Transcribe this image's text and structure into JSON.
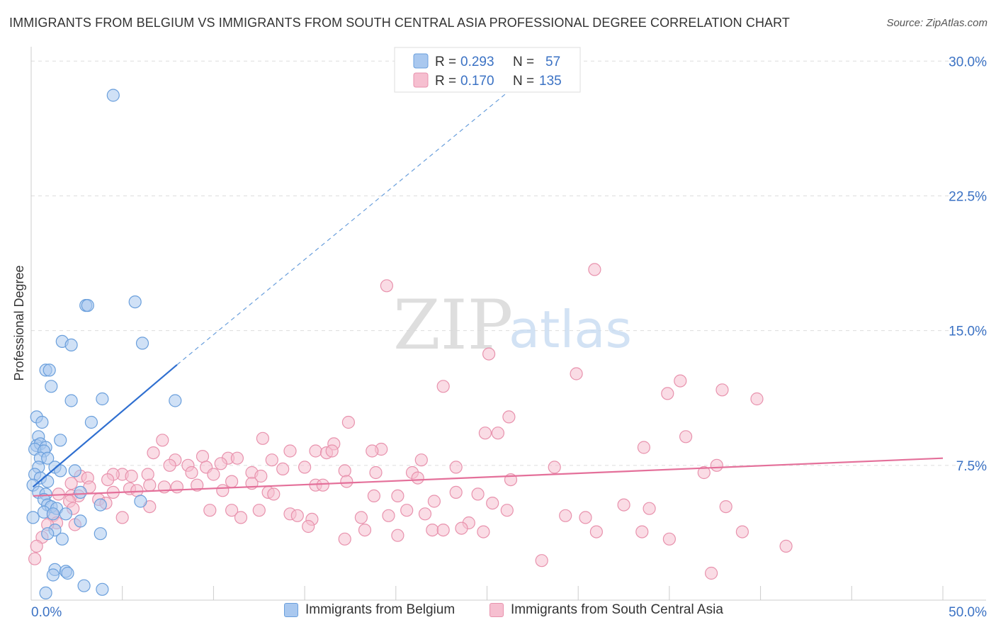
{
  "header": {
    "title": "IMMIGRANTS FROM BELGIUM VS IMMIGRANTS FROM SOUTH CENTRAL ASIA PROFESSIONAL DEGREE CORRELATION CHART",
    "source": "Source: ZipAtlas.com"
  },
  "watermark": {
    "zip": "ZIP",
    "atlas": "atlas"
  },
  "colors": {
    "blue_fill": "#a9c8ef",
    "blue_stroke": "#6a9fdc",
    "blue_line": "#2f6fd0",
    "pink_fill": "#f6bfd0",
    "pink_stroke": "#e892ad",
    "pink_line": "#e4709a",
    "tick_label": "#3b72c4",
    "grid": "#dddddd"
  },
  "legend_top": {
    "rows": [
      {
        "r_label": "R =",
        "r_value": "0.293",
        "n_label": "N =",
        "n_value": "57"
      },
      {
        "r_label": "R =",
        "r_value": "0.170",
        "n_label": "N =",
        "n_value": "135"
      }
    ]
  },
  "legend_bottom": {
    "items": [
      {
        "label": "Immigrants from Belgium"
      },
      {
        "label": "Immigrants from South Central Asia"
      }
    ]
  },
  "chart_data": {
    "type": "scatter",
    "title": "IMMIGRANTS FROM BELGIUM VS IMMIGRANTS FROM SOUTH CENTRAL ASIA PROFESSIONAL DEGREE CORRELATION CHART",
    "ylabel": "Professional Degree",
    "xlabel": "",
    "xlim": [
      0,
      50
    ],
    "ylim": [
      0,
      30.8
    ],
    "x_tick_labels": [
      {
        "value": 0,
        "label": "0.0%"
      },
      {
        "value": 50,
        "label": "50.0%"
      }
    ],
    "y_tick_labels": [
      {
        "value": 7.5,
        "label": "7.5%"
      },
      {
        "value": 15,
        "label": "15.0%"
      },
      {
        "value": 22.5,
        "label": "22.5%"
      },
      {
        "value": 30,
        "label": "30.0%"
      }
    ],
    "grid": true,
    "legend_position": "top-center",
    "series": [
      {
        "name": "Immigrants from Belgium",
        "color": "#6a9fdc",
        "r": 0.293,
        "n": 57,
        "trend": {
          "x": [
            0.1,
            8.0
          ],
          "y": [
            6.3,
            13.1
          ],
          "dashed_extension": {
            "x": [
              8.0,
              27.0
            ],
            "y": [
              13.1,
              29.0
            ]
          }
        },
        "points": [
          [
            4.5,
            28.1
          ],
          [
            5.7,
            16.6
          ],
          [
            3.0,
            16.4
          ],
          [
            3.1,
            16.4
          ],
          [
            6.1,
            14.3
          ],
          [
            1.7,
            14.4
          ],
          [
            2.2,
            14.2
          ],
          [
            0.8,
            12.8
          ],
          [
            1.0,
            12.8
          ],
          [
            1.1,
            11.9
          ],
          [
            2.2,
            11.1
          ],
          [
            3.9,
            11.2
          ],
          [
            7.9,
            11.1
          ],
          [
            0.3,
            10.2
          ],
          [
            0.6,
            9.9
          ],
          [
            3.3,
            9.9
          ],
          [
            0.4,
            9.1
          ],
          [
            1.6,
            8.9
          ],
          [
            0.3,
            8.6
          ],
          [
            0.5,
            8.7
          ],
          [
            0.8,
            8.5
          ],
          [
            0.2,
            8.4
          ],
          [
            0.7,
            8.3
          ],
          [
            0.5,
            7.9
          ],
          [
            0.9,
            7.9
          ],
          [
            0.4,
            7.4
          ],
          [
            1.3,
            7.4
          ],
          [
            1.6,
            7.2
          ],
          [
            2.4,
            7.2
          ],
          [
            0.2,
            7.0
          ],
          [
            0.5,
            6.8
          ],
          [
            0.9,
            6.6
          ],
          [
            0.1,
            6.4
          ],
          [
            0.4,
            6.0
          ],
          [
            0.8,
            5.9
          ],
          [
            2.7,
            6.0
          ],
          [
            0.7,
            5.6
          ],
          [
            0.9,
            5.3
          ],
          [
            1.1,
            5.2
          ],
          [
            1.4,
            5.1
          ],
          [
            3.8,
            5.3
          ],
          [
            6.0,
            5.5
          ],
          [
            0.7,
            4.9
          ],
          [
            1.2,
            4.8
          ],
          [
            1.9,
            4.8
          ],
          [
            0.1,
            4.6
          ],
          [
            2.7,
            4.4
          ],
          [
            1.3,
            3.9
          ],
          [
            3.8,
            3.7
          ],
          [
            0.9,
            3.7
          ],
          [
            1.7,
            3.4
          ],
          [
            1.3,
            1.7
          ],
          [
            1.9,
            1.6
          ],
          [
            2.0,
            1.5
          ],
          [
            1.2,
            1.4
          ],
          [
            2.9,
            0.8
          ],
          [
            3.9,
            0.6
          ],
          [
            0.8,
            0.4
          ]
        ]
      },
      {
        "name": "Immigrants from South Central Asia",
        "color": "#e892ad",
        "r": 0.17,
        "n": 135,
        "trend": {
          "x": [
            0.1,
            50.0
          ],
          "y": [
            5.8,
            7.9
          ]
        },
        "points": [
          [
            30.9,
            18.4
          ],
          [
            19.5,
            17.5
          ],
          [
            25.1,
            13.7
          ],
          [
            29.9,
            12.6
          ],
          [
            35.6,
            12.2
          ],
          [
            37.9,
            11.7
          ],
          [
            34.9,
            11.5
          ],
          [
            39.8,
            11.2
          ],
          [
            22.6,
            11.9
          ],
          [
            26.2,
            10.2
          ],
          [
            17.4,
            9.9
          ],
          [
            24.9,
            9.3
          ],
          [
            25.6,
            9.3
          ],
          [
            12.7,
            9.0
          ],
          [
            35.9,
            9.1
          ],
          [
            7.2,
            8.9
          ],
          [
            16.6,
            8.7
          ],
          [
            33.6,
            8.5
          ],
          [
            19.2,
            8.4
          ],
          [
            18.7,
            8.3
          ],
          [
            6.7,
            8.2
          ],
          [
            14.2,
            8.3
          ],
          [
            15.6,
            8.3
          ],
          [
            16.2,
            8.2
          ],
          [
            16.5,
            8.3
          ],
          [
            9.4,
            8.0
          ],
          [
            10.8,
            7.9
          ],
          [
            11.3,
            7.9
          ],
          [
            13.2,
            7.8
          ],
          [
            21.4,
            7.8
          ],
          [
            7.9,
            7.8
          ],
          [
            10.4,
            7.6
          ],
          [
            7.6,
            7.5
          ],
          [
            8.6,
            7.5
          ],
          [
            9.6,
            7.4
          ],
          [
            13.8,
            7.3
          ],
          [
            15.0,
            7.4
          ],
          [
            28.7,
            7.4
          ],
          [
            37.6,
            7.5
          ],
          [
            17.2,
            7.2
          ],
          [
            18.9,
            7.1
          ],
          [
            20.9,
            7.1
          ],
          [
            23.3,
            7.4
          ],
          [
            36.9,
            7.1
          ],
          [
            8.8,
            7.1
          ],
          [
            10.0,
            7.0
          ],
          [
            12.1,
            7.1
          ],
          [
            12.6,
            6.9
          ],
          [
            5.0,
            7.0
          ],
          [
            5.5,
            6.9
          ],
          [
            6.4,
            7.0
          ],
          [
            4.5,
            7.0
          ],
          [
            2.7,
            6.9
          ],
          [
            3.1,
            6.8
          ],
          [
            4.2,
            6.7
          ],
          [
            26.3,
            6.7
          ],
          [
            21.2,
            6.8
          ],
          [
            11.0,
            6.6
          ],
          [
            12.1,
            6.5
          ],
          [
            15.6,
            6.4
          ],
          [
            16.0,
            6.4
          ],
          [
            17.3,
            6.6
          ],
          [
            6.5,
            6.4
          ],
          [
            7.3,
            6.3
          ],
          [
            8.0,
            6.3
          ],
          [
            9.1,
            6.4
          ],
          [
            2.2,
            6.5
          ],
          [
            3.2,
            6.3
          ],
          [
            5.4,
            6.2
          ],
          [
            5.8,
            6.1
          ],
          [
            4.5,
            6.0
          ],
          [
            10.5,
            6.1
          ],
          [
            13.0,
            6.0
          ],
          [
            13.3,
            5.9
          ],
          [
            1.5,
            5.9
          ],
          [
            2.2,
            5.8
          ],
          [
            2.6,
            5.8
          ],
          [
            3.7,
            5.6
          ],
          [
            18.8,
            5.8
          ],
          [
            20.1,
            5.8
          ],
          [
            23.3,
            6.0
          ],
          [
            24.5,
            5.9
          ],
          [
            22.1,
            5.5
          ],
          [
            25.3,
            5.4
          ],
          [
            32.5,
            5.3
          ],
          [
            38.1,
            5.2
          ],
          [
            33.9,
            5.1
          ],
          [
            4.1,
            5.4
          ],
          [
            6.5,
            5.2
          ],
          [
            9.8,
            5.0
          ],
          [
            11.0,
            5.0
          ],
          [
            12.5,
            5.0
          ],
          [
            20.6,
            5.0
          ],
          [
            21.6,
            4.8
          ],
          [
            26.1,
            5.0
          ],
          [
            14.2,
            4.8
          ],
          [
            14.6,
            4.7
          ],
          [
            18.1,
            4.6
          ],
          [
            19.6,
            4.7
          ],
          [
            29.3,
            4.7
          ],
          [
            30.4,
            4.6
          ],
          [
            5.0,
            4.6
          ],
          [
            11.5,
            4.6
          ],
          [
            15.4,
            4.5
          ],
          [
            2.1,
            5.5
          ],
          [
            2.3,
            5.1
          ],
          [
            1.2,
            4.7
          ],
          [
            1.4,
            4.3
          ],
          [
            24.0,
            4.3
          ],
          [
            15.2,
            4.1
          ],
          [
            23.6,
            4.0
          ],
          [
            18.3,
            3.9
          ],
          [
            22.0,
            3.9
          ],
          [
            22.6,
            3.9
          ],
          [
            31.0,
            3.8
          ],
          [
            33.5,
            3.8
          ],
          [
            39.0,
            3.8
          ],
          [
            24.8,
            3.8
          ],
          [
            20.1,
            3.6
          ],
          [
            35.0,
            3.4
          ],
          [
            17.2,
            3.4
          ],
          [
            0.6,
            3.5
          ],
          [
            0.3,
            3.0
          ],
          [
            41.4,
            3.0
          ],
          [
            28.0,
            2.2
          ],
          [
            0.2,
            2.3
          ],
          [
            37.3,
            1.5
          ],
          [
            0.9,
            4.2
          ],
          [
            2.4,
            4.2
          ]
        ]
      }
    ]
  }
}
